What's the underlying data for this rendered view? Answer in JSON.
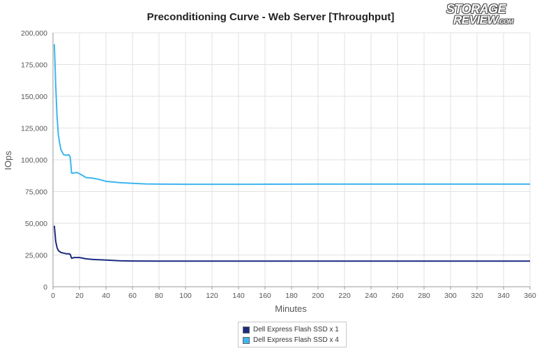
{
  "logo": {
    "line1": "STORAGE",
    "line2": "REVIEW",
    "suffix": ".COM"
  },
  "chart_data": {
    "type": "line",
    "title": "Preconditioning Curve - Web Server [Throughput]",
    "xlabel": "Minutes",
    "ylabel": "IOps",
    "xlim": [
      0,
      360
    ],
    "ylim": [
      0,
      200000
    ],
    "x_ticks": [
      0,
      20,
      40,
      60,
      80,
      100,
      120,
      140,
      160,
      180,
      200,
      220,
      240,
      260,
      280,
      300,
      320,
      340,
      360
    ],
    "y_ticks": [
      0,
      25000,
      50000,
      75000,
      100000,
      125000,
      150000,
      175000,
      200000
    ],
    "y_tick_labels": [
      "0",
      "25,000",
      "50,000",
      "75,000",
      "100,000",
      "125,000",
      "150,000",
      "175,000",
      "200,000"
    ],
    "grid": true,
    "legend_position": "bottom-center",
    "series": [
      {
        "name": "Dell Express Flash SSD x 1",
        "color": "#1a2a80",
        "x": [
          1,
          2,
          3,
          4,
          6,
          8,
          10,
          12,
          13,
          14,
          16,
          20,
          25,
          30,
          40,
          50,
          60,
          80,
          100,
          150,
          200,
          250,
          300,
          360
        ],
        "y": [
          48000,
          36000,
          31000,
          28500,
          27000,
          26500,
          26000,
          26000,
          25500,
          22500,
          23000,
          23000,
          22000,
          21500,
          21000,
          20500,
          20300,
          20200,
          20200,
          20200,
          20200,
          20200,
          20200,
          20200
        ]
      },
      {
        "name": "Dell Express Flash SSD x 4",
        "color": "#3db5ee",
        "x": [
          1,
          2,
          3,
          4,
          5,
          6,
          8,
          10,
          12,
          13,
          14,
          15,
          18,
          20,
          25,
          30,
          35,
          40,
          50,
          60,
          70,
          80,
          100,
          150,
          200,
          250,
          300,
          360
        ],
        "y": [
          191000,
          160000,
          135000,
          120000,
          113000,
          108000,
          104000,
          103500,
          104000,
          102000,
          89500,
          89500,
          90000,
          89000,
          86000,
          85500,
          84500,
          83000,
          82000,
          81500,
          81000,
          80800,
          80700,
          80700,
          80800,
          80800,
          80800,
          80800
        ]
      }
    ]
  }
}
